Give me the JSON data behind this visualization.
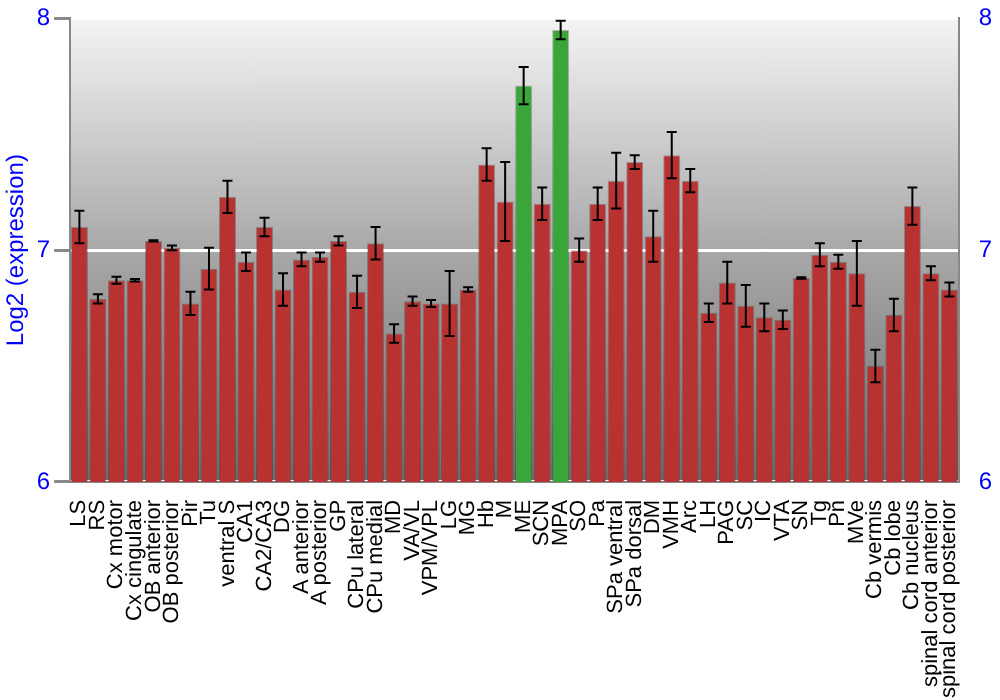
{
  "chart_data": {
    "type": "bar",
    "ylabel": "Log2 (expression)",
    "categories": [
      "LS",
      "RS",
      "Cx motor",
      "Cx cingulate",
      "OB anterior",
      "OB posterior",
      "Pir",
      "Tu",
      "ventral S",
      "CA1",
      "CA2/CA3",
      "DG",
      "A anterior",
      "A posterior",
      "GP",
      "CPu lateral",
      "CPu medial",
      "MD",
      "VA/VL",
      "VPM/VPL",
      "LG",
      "MG",
      "Hb",
      "M",
      "ME",
      "SCN",
      "MPA",
      "SO",
      "Pa",
      "SPa ventral",
      "SPa dorsal",
      "DM",
      "VMH",
      "Arc",
      "LH",
      "PAG",
      "SC",
      "IC",
      "VTA",
      "SN",
      "Tg",
      "Pn",
      "MVe",
      "Cb vermis",
      "Cb lobe",
      "Cb nucleus",
      "spinal cord anterior",
      "spinal cord posterior"
    ],
    "values": [
      7.1,
      6.79,
      6.87,
      6.87,
      7.04,
      7.01,
      6.77,
      6.92,
      7.23,
      6.95,
      7.1,
      6.83,
      6.96,
      6.97,
      7.04,
      6.82,
      7.03,
      6.64,
      6.78,
      6.77,
      6.77,
      6.83,
      7.37,
      7.21,
      7.71,
      7.2,
      7.95,
      7.0,
      7.2,
      7.3,
      7.38,
      7.06,
      7.41,
      7.3,
      6.73,
      6.86,
      6.76,
      6.71,
      6.7,
      6.88,
      6.98,
      6.95,
      6.9,
      6.5,
      6.72,
      7.19,
      6.9,
      6.83
    ],
    "errors": [
      0.07,
      0.02,
      0.015,
      0.005,
      0.003,
      0.01,
      0.05,
      0.09,
      0.07,
      0.04,
      0.04,
      0.07,
      0.03,
      0.02,
      0.02,
      0.07,
      0.07,
      0.04,
      0.02,
      0.015,
      0.14,
      0.01,
      0.07,
      0.17,
      0.08,
      0.07,
      0.04,
      0.05,
      0.07,
      0.12,
      0.03,
      0.11,
      0.1,
      0.05,
      0.04,
      0.09,
      0.09,
      0.06,
      0.04,
      0.003,
      0.05,
      0.03,
      0.14,
      0.07,
      0.07,
      0.08,
      0.03,
      0.03
    ],
    "colors": [
      "#b83232",
      "#b83232",
      "#b83232",
      "#b83232",
      "#b83232",
      "#b83232",
      "#b83232",
      "#b83232",
      "#b83232",
      "#b83232",
      "#b83232",
      "#b83232",
      "#b83232",
      "#b83232",
      "#b83232",
      "#b83232",
      "#b83232",
      "#b83232",
      "#b83232",
      "#b83232",
      "#b83232",
      "#b83232",
      "#b83232",
      "#b83232",
      "#3aa63a",
      "#b83232",
      "#3aa63a",
      "#b83232",
      "#b83232",
      "#b83232",
      "#b83232",
      "#b83232",
      "#b83232",
      "#b83232",
      "#b83232",
      "#b83232",
      "#b83232",
      "#b83232",
      "#b83232",
      "#b83232",
      "#b83232",
      "#b83232",
      "#b83232",
      "#b83232",
      "#b83232",
      "#b83232",
      "#b83232",
      "#b83232"
    ],
    "ylim": [
      6,
      8
    ],
    "yticks": [
      6,
      7,
      8
    ],
    "y2lim": [
      6,
      8
    ],
    "y2ticks": [
      6,
      7,
      8
    ],
    "grid": "y",
    "legend": false
  }
}
